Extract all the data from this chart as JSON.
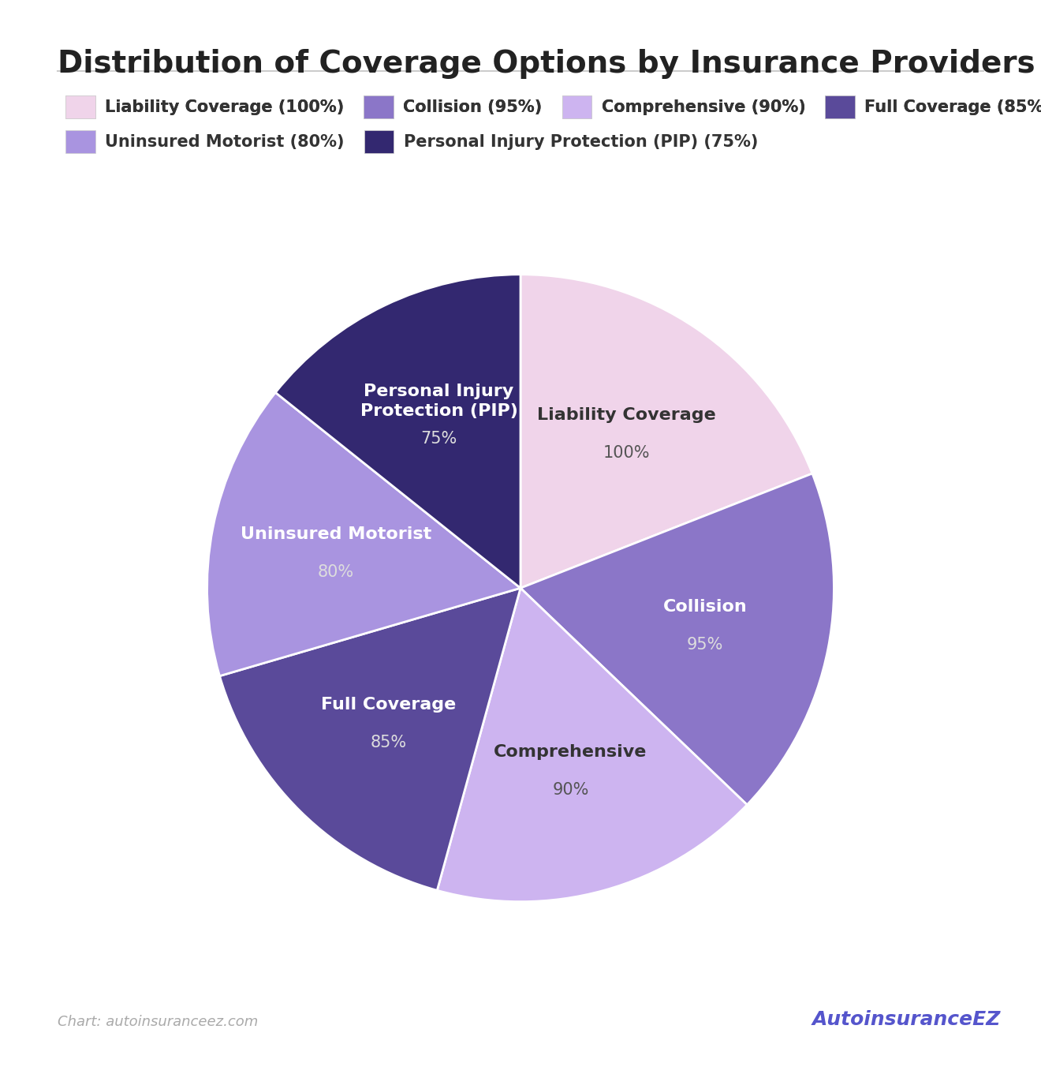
{
  "title": "Distribution of Coverage Options by Insurance Providers",
  "labels": [
    "Liability Coverage",
    "Collision",
    "Comprehensive",
    "Full Coverage",
    "Uninsured Motorist",
    "Personal Injury\nProtection (PIP)"
  ],
  "legend_labels": [
    "Liability Coverage",
    "Collision",
    "Comprehensive",
    "Full Coverage",
    "Uninsured Motorist",
    "Personal Injury Protection (PIP)"
  ],
  "percentages": [
    100,
    95,
    90,
    85,
    80,
    75
  ],
  "colors": [
    "#f0d4ea",
    "#8b76c8",
    "#cdb4f0",
    "#5a4a9a",
    "#a994e0",
    "#332870"
  ],
  "label_colors": [
    "#333333",
    "#ffffff",
    "#333333",
    "#ffffff",
    "#ffffff",
    "#ffffff"
  ],
  "pct_colors": [
    "#555555",
    "#dddddd",
    "#555555",
    "#dddddd",
    "#dddddd",
    "#dddddd"
  ],
  "background_color": "#ffffff",
  "title_fontsize": 28,
  "label_fontsize": 16,
  "pct_fontsize": 15,
  "legend_fontsize": 15,
  "footer_text": "Chart: autoinsuranceez.com",
  "footer_color": "#aaaaaa",
  "startangle": 90
}
